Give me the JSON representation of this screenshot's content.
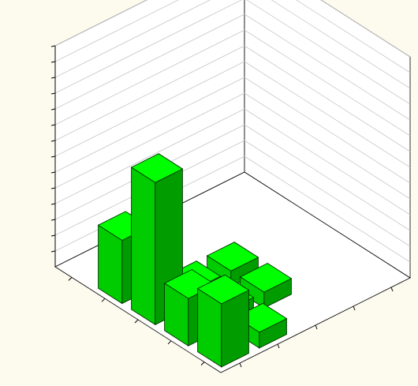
{
  "chart_data": {
    "type": "bar3d",
    "title": "",
    "xlabel": "",
    "ylabel": "",
    "zlabel": "",
    "colors": {
      "top": "#00ff00",
      "front": "#00cc00",
      "side": "#009c00",
      "edge": "#003300"
    },
    "x_ticks": [
      "",
      "",
      "",
      "",
      ""
    ],
    "y_ticks": [
      "",
      "",
      "",
      "",
      ""
    ],
    "z_ticks": [
      "",
      "",
      "",
      "",
      "",
      "",
      "",
      "",
      "",
      "",
      "",
      "",
      "",
      ""
    ],
    "z_range": [
      0,
      14
    ],
    "grid": true,
    "bars": [
      {
        "x": 1,
        "y": 1,
        "value": 4
      },
      {
        "x": 1,
        "y": 2,
        "value": 1
      },
      {
        "x": 2,
        "y": 1,
        "value": 3
      },
      {
        "x": 2,
        "y": 2,
        "value": 1
      },
      {
        "x": 2,
        "y": 3,
        "value": 1
      },
      {
        "x": 3,
        "y": 1,
        "value": 9
      },
      {
        "x": 3,
        "y": 2,
        "value": 1
      },
      {
        "x": 3,
        "y": 3,
        "value": 1
      },
      {
        "x": 4,
        "y": 1,
        "value": 4
      }
    ]
  }
}
